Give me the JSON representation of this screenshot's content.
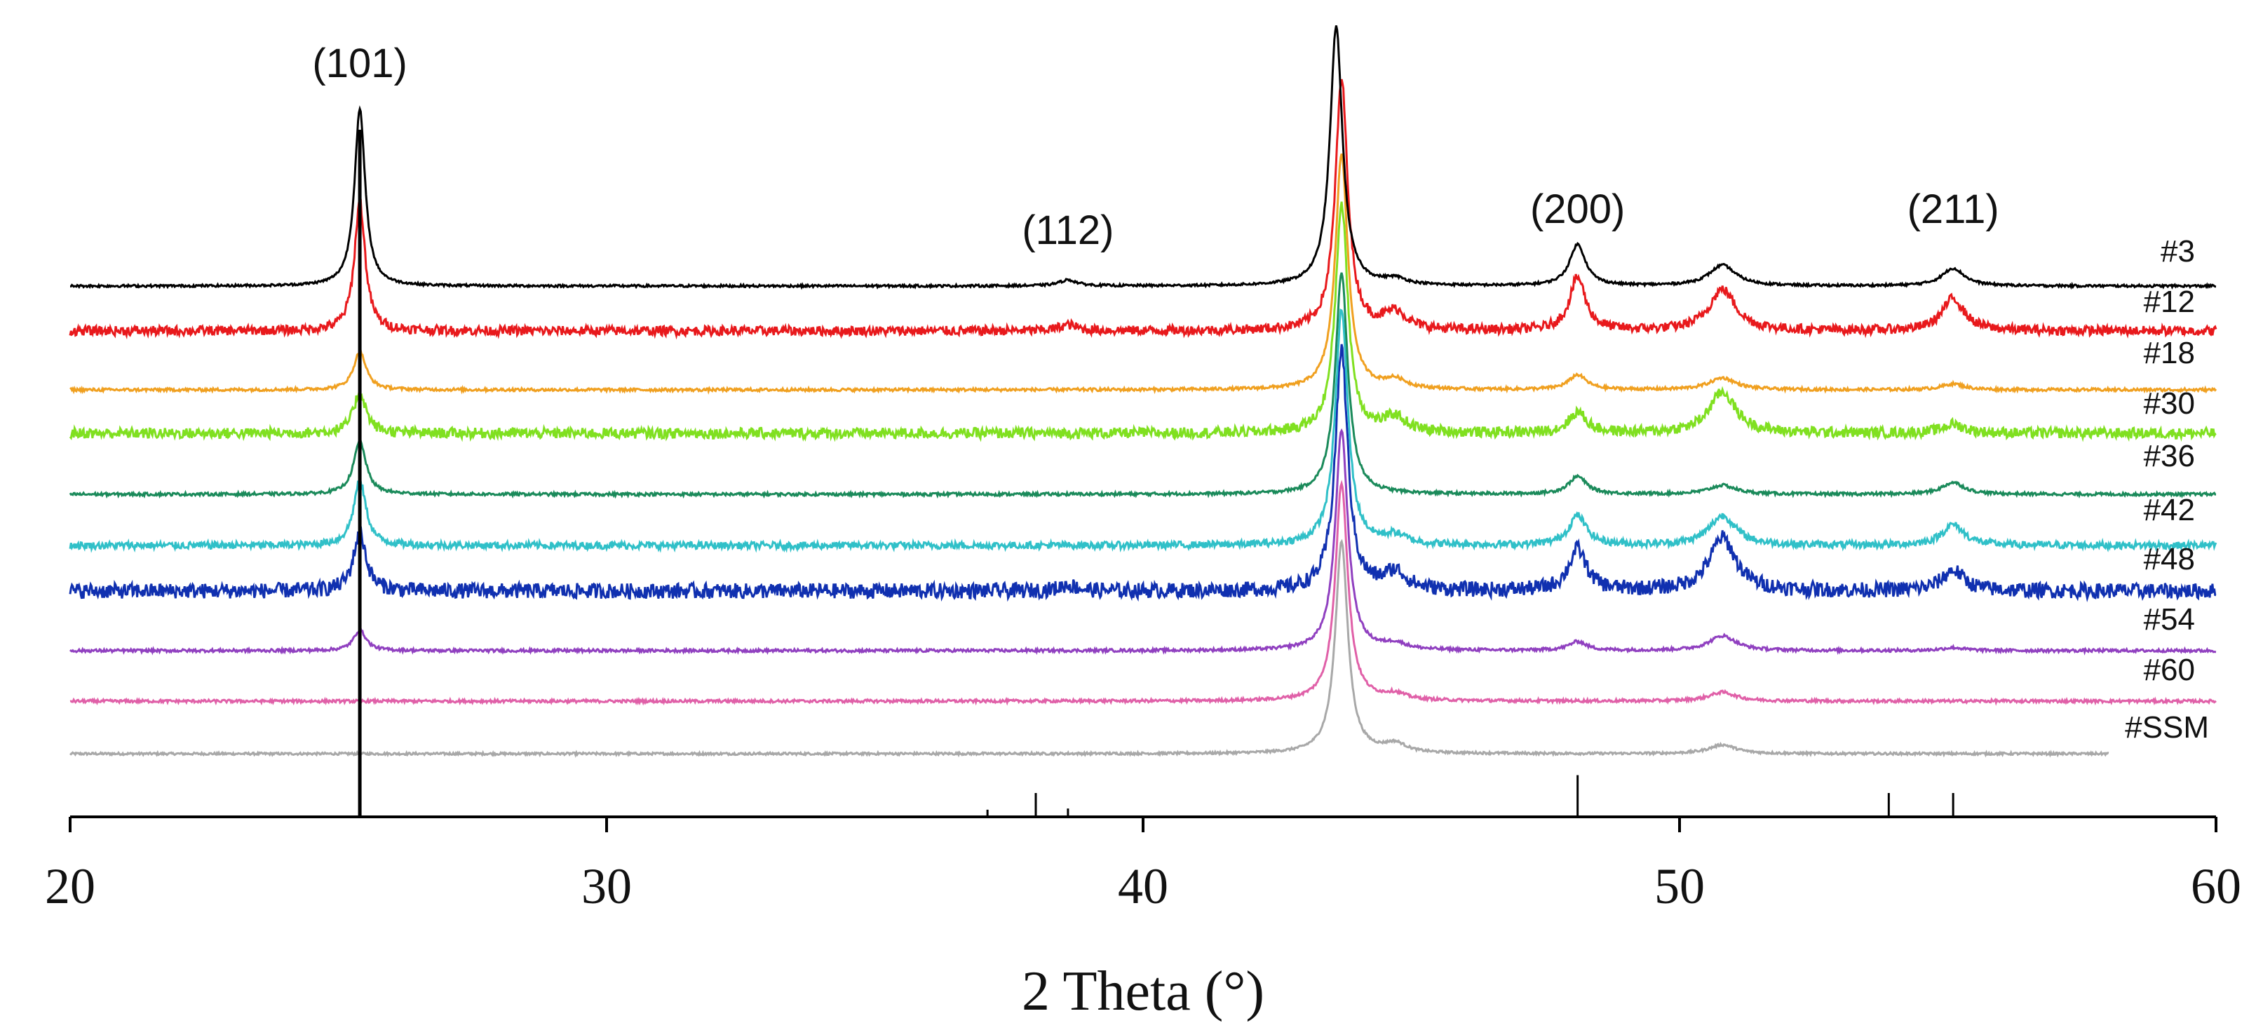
{
  "chart_data": {
    "type": "line",
    "title": "",
    "xlabel": "2 Theta (°)",
    "ylabel": "",
    "xlim": [
      20,
      60
    ],
    "xticks": [
      20,
      30,
      40,
      50,
      60
    ],
    "grid": false,
    "legend": "labels at right end of each trace",
    "annotations": [
      {
        "text": "(101)",
        "x": 25.4
      },
      {
        "text": "(112)",
        "x": 38.6
      },
      {
        "text": "(200)",
        "x": 48.1
      },
      {
        "text": "(211)",
        "x": 55.1
      }
    ],
    "reference_peaks": [
      {
        "x": 25.4,
        "intensity": 100
      },
      {
        "x": 37.1,
        "intensity": 6
      },
      {
        "x": 38.0,
        "intensity": 20
      },
      {
        "x": 38.6,
        "intensity": 7
      },
      {
        "x": 48.1,
        "intensity": 35
      },
      {
        "x": 53.9,
        "intensity": 20
      },
      {
        "x": 55.1,
        "intensity": 20
      }
    ],
    "series": [
      {
        "name": "#3",
        "color": "#000000",
        "noise": 0.4,
        "peaks": [
          [
            25.4,
            60,
            0.12
          ],
          [
            38.6,
            2,
            0.2
          ],
          [
            43.6,
            88,
            0.14
          ],
          [
            44.7,
            2,
            0.25
          ],
          [
            48.1,
            14,
            0.18
          ],
          [
            50.8,
            7,
            0.3
          ],
          [
            55.1,
            6,
            0.25
          ]
        ]
      },
      {
        "name": "#12",
        "color": "#e8191c",
        "noise": 1.6,
        "peaks": [
          [
            25.4,
            44,
            0.12
          ],
          [
            38.6,
            2,
            0.2
          ],
          [
            43.7,
            85,
            0.14
          ],
          [
            44.7,
            6,
            0.25
          ],
          [
            48.1,
            18,
            0.18
          ],
          [
            50.8,
            14,
            0.3
          ],
          [
            55.1,
            11,
            0.25
          ]
        ]
      },
      {
        "name": "#18",
        "color": "#f0a020",
        "noise": 0.5,
        "peaks": [
          [
            25.4,
            13,
            0.14
          ],
          [
            43.7,
            80,
            0.14
          ],
          [
            44.7,
            3,
            0.25
          ],
          [
            48.1,
            5,
            0.2
          ],
          [
            50.8,
            4,
            0.3
          ],
          [
            55.1,
            2,
            0.25
          ]
        ]
      },
      {
        "name": "#30",
        "color": "#80e020",
        "noise": 1.8,
        "peaks": [
          [
            25.4,
            14,
            0.14
          ],
          [
            43.7,
            78,
            0.14
          ],
          [
            44.7,
            5,
            0.25
          ],
          [
            48.1,
            7,
            0.2
          ],
          [
            50.8,
            14,
            0.3
          ],
          [
            55.1,
            3,
            0.25
          ]
        ]
      },
      {
        "name": "#36",
        "color": "#1a8a5a",
        "noise": 0.5,
        "peaks": [
          [
            25.4,
            18,
            0.14
          ],
          [
            43.7,
            75,
            0.14
          ],
          [
            48.1,
            6,
            0.2
          ],
          [
            50.8,
            3,
            0.3
          ],
          [
            55.1,
            4,
            0.25
          ]
        ]
      },
      {
        "name": "#42",
        "color": "#30c0c8",
        "noise": 1.2,
        "peaks": [
          [
            25.4,
            22,
            0.14
          ],
          [
            43.7,
            80,
            0.14
          ],
          [
            44.7,
            3,
            0.25
          ],
          [
            48.1,
            10,
            0.2
          ],
          [
            50.8,
            10,
            0.3
          ],
          [
            55.1,
            7,
            0.25
          ]
        ]
      },
      {
        "name": "#48",
        "color": "#1030b0",
        "noise": 2.6,
        "peaks": [
          [
            25.4,
            20,
            0.14
          ],
          [
            38.6,
            2,
            0.2
          ],
          [
            43.7,
            82,
            0.14
          ],
          [
            44.7,
            6,
            0.25
          ],
          [
            48.1,
            14,
            0.2
          ],
          [
            50.8,
            18,
            0.3
          ],
          [
            55.1,
            7,
            0.25
          ]
        ]
      },
      {
        "name": "#54",
        "color": "#9040c0",
        "noise": 0.5,
        "peaks": [
          [
            25.4,
            7,
            0.14
          ],
          [
            43.7,
            75,
            0.14
          ],
          [
            44.7,
            2,
            0.25
          ],
          [
            48.1,
            3,
            0.2
          ],
          [
            50.8,
            5,
            0.3
          ],
          [
            55.1,
            1,
            0.25
          ]
        ]
      },
      {
        "name": "#60",
        "color": "#e060a8",
        "noise": 0.5,
        "peaks": [
          [
            43.7,
            74,
            0.14
          ],
          [
            44.7,
            2,
            0.25
          ],
          [
            50.8,
            3,
            0.3
          ]
        ]
      },
      {
        "name": "#SSM",
        "color": "#a8a8a8",
        "noise": 0.4,
        "peaks": [
          [
            43.7,
            72,
            0.14
          ],
          [
            44.7,
            3,
            0.25
          ],
          [
            50.8,
            3,
            0.3
          ]
        ]
      }
    ]
  }
}
